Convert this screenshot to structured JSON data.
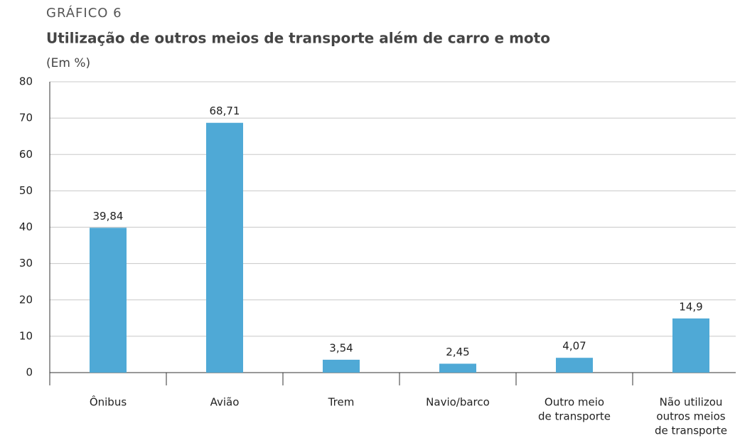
{
  "chart_data": {
    "type": "bar",
    "kicker": "GRÁFICO 6",
    "title": "Utilização de outros meios de transporte além de carro e moto",
    "subtitle": "(Em %)",
    "categories": [
      [
        "Ônibus"
      ],
      [
        "Avião"
      ],
      [
        "Trem"
      ],
      [
        "Navio/barco"
      ],
      [
        "Outro meio",
        "de transporte"
      ],
      [
        "Não utilizou",
        "outros meios",
        "de transporte"
      ]
    ],
    "values": [
      39.84,
      68.71,
      3.54,
      2.45,
      4.07,
      14.9
    ],
    "value_labels": [
      "39,84",
      "68,71",
      "3,54",
      "2,45",
      "4,07",
      "14,9"
    ],
    "color": "#4fa9d6",
    "ylim": [
      0,
      80
    ],
    "yticks": [
      0,
      10,
      20,
      30,
      40,
      50,
      60,
      70,
      80
    ],
    "grid": true
  }
}
